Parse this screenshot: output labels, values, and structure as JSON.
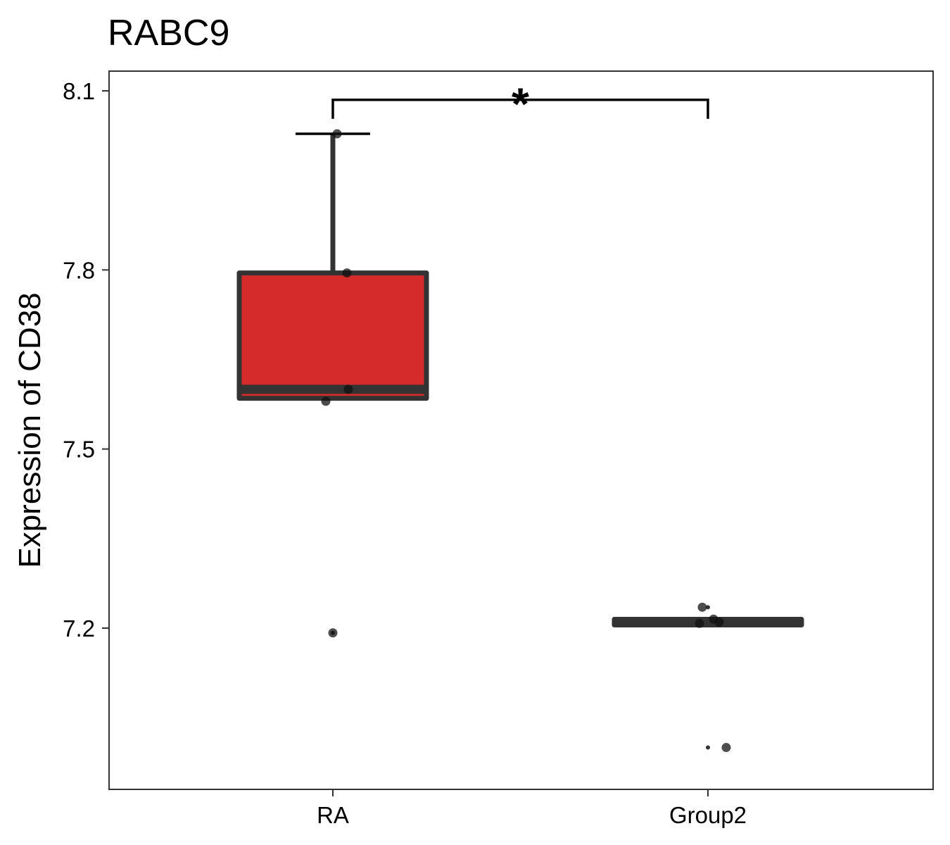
{
  "chart_data": {
    "type": "box",
    "title": "RABC9",
    "xlabel": "",
    "ylabel": "Expression of CD38",
    "categories": [
      "RA",
      "Group2"
    ],
    "ylim": [
      6.975,
      8.13
    ],
    "yticks": [
      7.2,
      7.5,
      7.8,
      8.1
    ],
    "ytick_labels": [
      "7.2",
      "7.5",
      "7.8",
      "8.1"
    ],
    "grid": false,
    "boxes": [
      {
        "category": "RA",
        "fill": "#d62b2b",
        "q1": 7.585,
        "median": 7.6,
        "q3": 7.795,
        "whisker_low": 7.585,
        "whisker_high": 8.028,
        "outliers": [
          7.192
        ],
        "points": [
          8.028,
          7.795,
          7.6,
          7.58,
          7.192
        ]
      },
      {
        "category": "Group2",
        "fill": "#ffffff",
        "q1": 7.208,
        "median": 7.21,
        "q3": 7.212,
        "whisker_low": 7.208,
        "whisker_high": 7.212,
        "outliers": [
          7.235,
          7.0
        ],
        "points": [
          7.235,
          7.215,
          7.21,
          7.208,
          7.0
        ]
      }
    ],
    "annotations": [
      {
        "text": "*",
        "from": "RA",
        "to": "Group2",
        "y": 8.085
      }
    ],
    "colors": {
      "box_outline": "#333333",
      "point": "#111111",
      "panel_border": "#333333"
    }
  }
}
